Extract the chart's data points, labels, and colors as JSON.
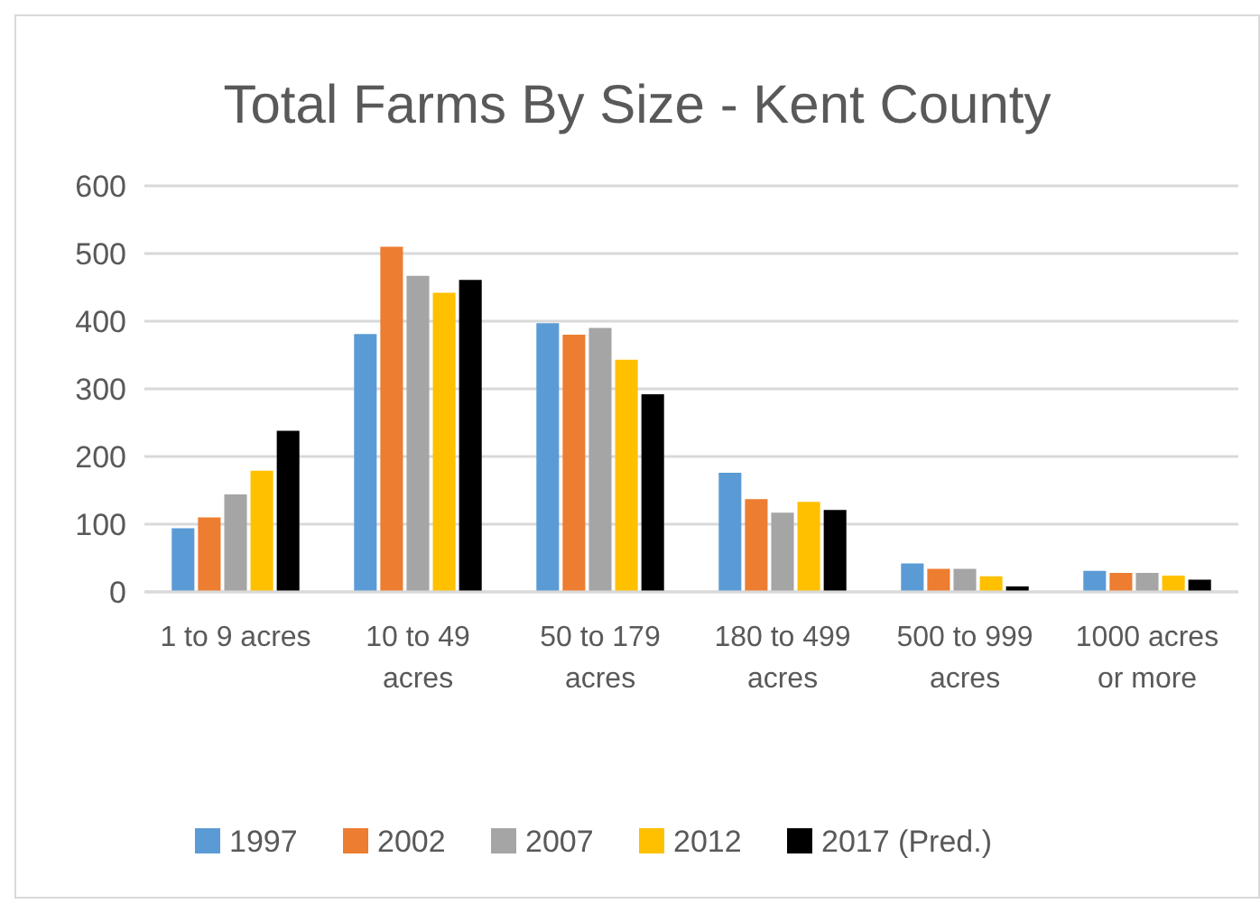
{
  "chart_data": {
    "type": "bar",
    "title": "Total Farms By Size - Kent County",
    "categories": [
      "1 to 9 acres",
      "10 to 49 acres",
      "50 to 179 acres",
      "180 to 499 acres",
      "500 to 999 acres",
      "1000 acres or more"
    ],
    "series": [
      {
        "name": "1997",
        "color": "#5b9bd5",
        "values": [
          94,
          381,
          397,
          176,
          42,
          31
        ]
      },
      {
        "name": "2002",
        "color": "#ed7d31",
        "values": [
          110,
          510,
          380,
          137,
          34,
          28
        ]
      },
      {
        "name": "2007",
        "color": "#a5a5a5",
        "values": [
          144,
          467,
          390,
          117,
          34,
          28
        ]
      },
      {
        "name": "2012",
        "color": "#ffc000",
        "values": [
          179,
          442,
          343,
          133,
          23,
          24
        ]
      },
      {
        "name": "2017 (Pred.)",
        "color": "#000000",
        "values": [
          238,
          461,
          292,
          121,
          8,
          18
        ]
      }
    ],
    "ylim": [
      0,
      600
    ],
    "yticks": [
      0,
      100,
      200,
      300,
      400,
      500,
      600
    ],
    "grid": "y",
    "legend": "bottom"
  }
}
